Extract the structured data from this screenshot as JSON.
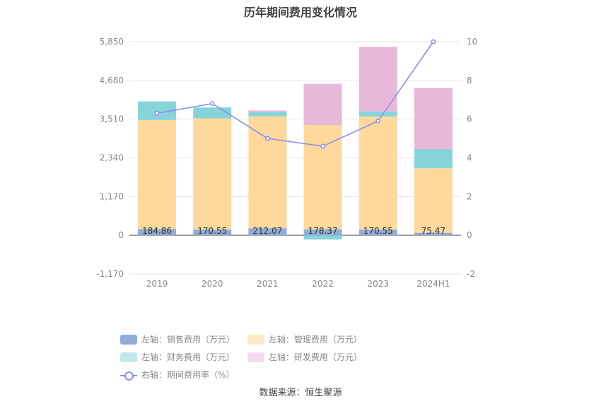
{
  "chart_data": {
    "type": "bar",
    "title": "历年期间费用变化情况",
    "categories": [
      "2019",
      "2020",
      "2021",
      "2022",
      "2023",
      "2024H1"
    ],
    "left_axis": {
      "ticks": [
        "5,850",
        "4,680",
        "3,510",
        "2,340",
        "1,170",
        "0",
        "-1,170"
      ],
      "ylim": [
        -1170,
        5850
      ]
    },
    "right_axis": {
      "ticks": [
        "10",
        "8",
        "6",
        "4",
        "2",
        "0",
        "-2"
      ],
      "ylim": [
        -2,
        10
      ]
    },
    "series": [
      {
        "name": "左轴：销售费用（万元）",
        "axis": "left",
        "color": "#8eadd9",
        "values": [
          184.86,
          170.55,
          212.07,
          178.37,
          170.55,
          75.47
        ],
        "labels": [
          "184.86",
          "170.55",
          "212.07",
          "178.37",
          "170.55",
          "75.47"
        ]
      },
      {
        "name": "左轴：管理费用（万元）",
        "axis": "left",
        "color": "#ffd89b",
        "values": [
          3300,
          3360,
          3380,
          3150,
          3420,
          1950
        ]
      },
      {
        "name": "左轴：财务费用（万元）",
        "axis": "left",
        "color": "#86d4d9",
        "values": [
          560,
          330,
          130,
          -130,
          150,
          580
        ]
      },
      {
        "name": "左轴：研发费用（万元）",
        "axis": "left",
        "color": "#e8b8da",
        "values": [
          0,
          0,
          50,
          1250,
          1950,
          1840
        ]
      },
      {
        "name": "右轴：期间费用率（%）",
        "axis": "right",
        "type": "line",
        "color": "#8a8ff0",
        "values": [
          6.3,
          6.8,
          5.0,
          4.6,
          5.9,
          10.0
        ]
      }
    ],
    "legend_position": "bottom",
    "grid": true
  },
  "source_note": "数据来源：恒生聚源"
}
